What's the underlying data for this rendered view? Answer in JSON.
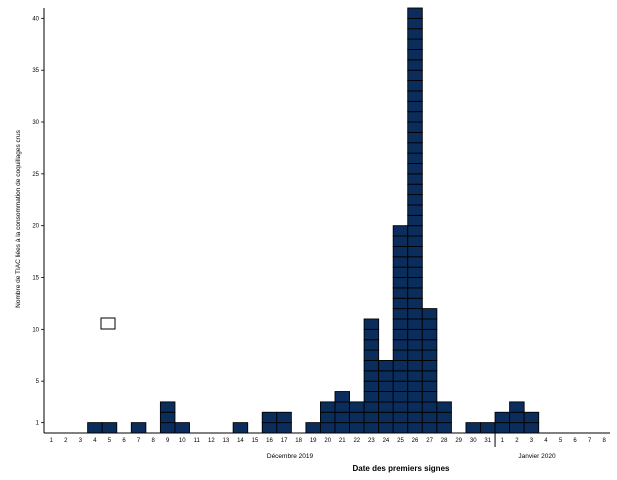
{
  "chart_data": {
    "type": "bar",
    "title": "",
    "xlabel": "Date des premiers signes",
    "ylabel": "Nombre de TIAC liées à la consommation de coquillages crus",
    "ylim": [
      0,
      41
    ],
    "y_ticks": [
      1,
      5,
      10,
      15,
      20,
      25,
      30,
      35,
      40
    ],
    "categories": [
      "1",
      "2",
      "3",
      "4",
      "5",
      "6",
      "7",
      "8",
      "9",
      "10",
      "11",
      "12",
      "13",
      "14",
      "15",
      "16",
      "17",
      "18",
      "19",
      "20",
      "21",
      "22",
      "23",
      "24",
      "25",
      "26",
      "27",
      "28",
      "29",
      "30",
      "31",
      "1",
      "2",
      "3",
      "4",
      "5",
      "6",
      "7",
      "8"
    ],
    "values": [
      0,
      0,
      0,
      1,
      1,
      0,
      1,
      0,
      3,
      1,
      0,
      0,
      0,
      1,
      0,
      2,
      2,
      0,
      1,
      3,
      4,
      3,
      11,
      7,
      20,
      41,
      12,
      3,
      0,
      1,
      1,
      2,
      3,
      2,
      0,
      0,
      0,
      0,
      0
    ],
    "month_labels": [
      "Décembre 2019",
      "Janvier 2020"
    ],
    "legend": {
      "position": "left",
      "marker": "open-square",
      "label": ""
    },
    "bar_color": "#0b2d5c",
    "grid": false
  }
}
